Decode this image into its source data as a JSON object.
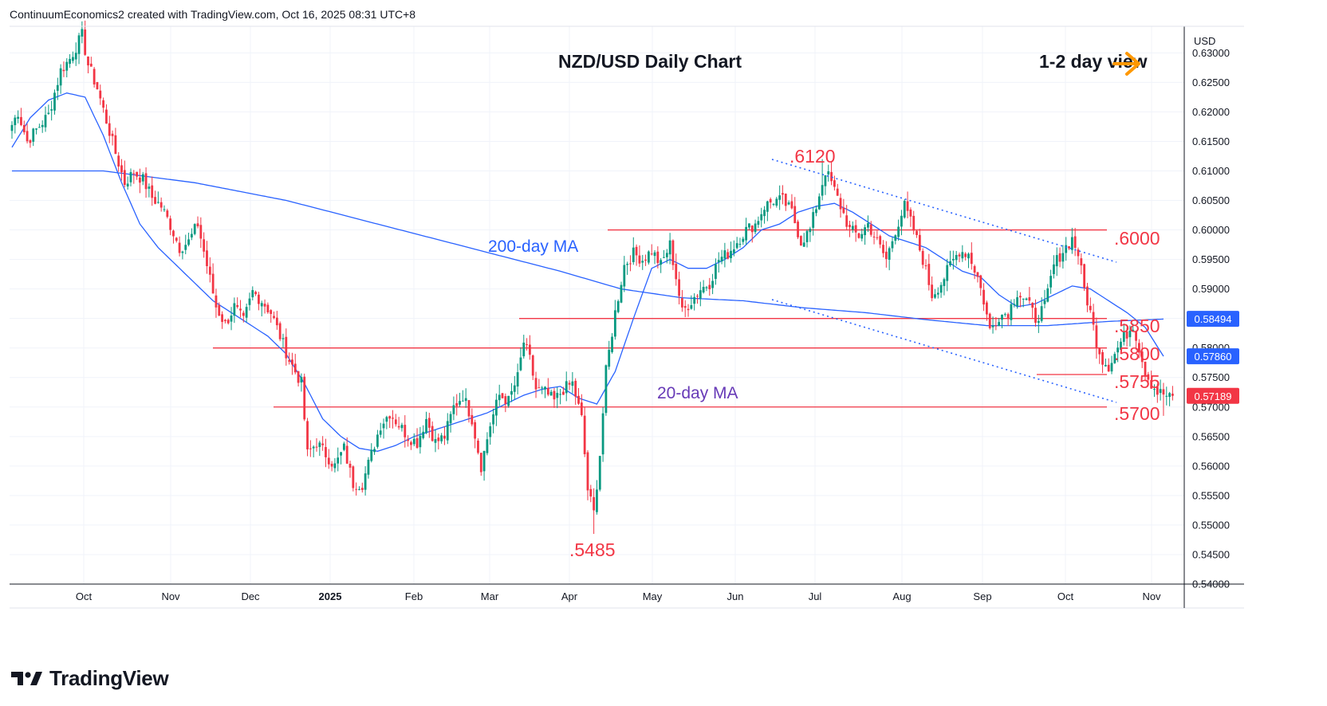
{
  "header": {
    "credit": "ContinuumEconomics2 created with TradingView.com, Oct 16, 2025 08:31 UTC+8"
  },
  "chart_data": {
    "type": "candlestick",
    "title": "NZD/USD Daily Chart",
    "view_note": "1-2 day view",
    "currency": "USD",
    "ylim": [
      0.54,
      0.6345
    ],
    "y_ticks": [
      "0.63000",
      "0.62500",
      "0.62000",
      "0.61500",
      "0.61000",
      "0.60500",
      "0.60000",
      "0.59500",
      "0.59000",
      "0.58500",
      "0.58000",
      "0.57500",
      "0.57000",
      "0.56500",
      "0.56000",
      "0.55500",
      "0.55000",
      "0.54500",
      "0.54000"
    ],
    "x_ticks": [
      "Oct",
      "Nov",
      "Dec",
      "2025",
      "Feb",
      "Mar",
      "Apr",
      "May",
      "Jun",
      "Jul",
      "Aug",
      "Sep",
      "Oct",
      "Nov"
    ],
    "x_tick_bold": "2025",
    "price_tags": [
      {
        "label": "0.58494",
        "value": 0.58494,
        "color": "#2962ff"
      },
      {
        "label": "0.57860",
        "value": 0.5786,
        "color": "#2962ff"
      },
      {
        "label": "0.57189",
        "value": 0.57189,
        "color": "#f23645"
      }
    ],
    "levels": [
      {
        "label": ".6000",
        "value": 0.6
      },
      {
        "label": ".5850",
        "value": 0.585
      },
      {
        "label": ".5800",
        "value": 0.58
      },
      {
        "label": ".5755",
        "value": 0.5755
      },
      {
        "label": ".5700",
        "value": 0.57
      }
    ],
    "peak_annotations": [
      {
        "label": ".6120",
        "value": 0.612
      },
      {
        "label": ".5485",
        "value": 0.5485
      }
    ],
    "ma_labels": {
      "ma200": "200-day MA",
      "ma20": "20-day MA"
    },
    "colors": {
      "up": "#089981",
      "down": "#f23645",
      "ma": "#2962ff",
      "level": "#f23645",
      "ma20_label": "#673ab7",
      "ma200_label": "#2962ff",
      "arrow": "#ff9800",
      "trend": "#2962ff"
    },
    "ohlc_anchors": [
      [
        0,
        0.6178
      ],
      [
        2,
        0.62
      ],
      [
        5,
        0.615
      ],
      [
        8,
        0.617
      ],
      [
        12,
        0.6195
      ],
      [
        16,
        0.627
      ],
      [
        19,
        0.629
      ],
      [
        21,
        0.631
      ],
      [
        23,
        0.633
      ],
      [
        25,
        0.628
      ],
      [
        28,
        0.624
      ],
      [
        31,
        0.6185
      ],
      [
        34,
        0.613
      ],
      [
        37,
        0.608
      ],
      [
        40,
        0.6098
      ],
      [
        43,
        0.6085
      ],
      [
        46,
        0.6055
      ],
      [
        49,
        0.604
      ],
      [
        52,
        0.6008
      ],
      [
        55,
        0.597
      ],
      [
        58,
        0.598
      ],
      [
        61,
        0.601
      ],
      [
        64,
        0.594
      ],
      [
        67,
        0.587
      ],
      [
        70,
        0.584
      ],
      [
        73,
        0.587
      ],
      [
        76,
        0.5845
      ],
      [
        79,
        0.5895
      ],
      [
        82,
        0.588
      ],
      [
        85,
        0.586
      ],
      [
        88,
        0.582
      ],
      [
        91,
        0.578
      ],
      [
        93,
        0.576
      ],
      [
        95,
        0.574
      ],
      [
        97,
        0.562
      ],
      [
        100,
        0.564
      ],
      [
        103,
        0.562
      ],
      [
        106,
        0.56
      ],
      [
        109,
        0.563
      ],
      [
        112,
        0.557
      ],
      [
        115,
        0.557
      ],
      [
        118,
        0.562
      ],
      [
        121,
        0.567
      ],
      [
        124,
        0.569
      ],
      [
        127,
        0.567
      ],
      [
        130,
        0.565
      ],
      [
        133,
        0.564
      ],
      [
        136,
        0.568
      ],
      [
        139,
        0.564
      ],
      [
        142,
        0.565
      ],
      [
        145,
        0.57
      ],
      [
        148,
        0.572
      ],
      [
        151,
        0.568
      ],
      [
        154,
        0.56
      ],
      [
        157,
        0.567
      ],
      [
        160,
        0.572
      ],
      [
        163,
        0.571
      ],
      [
        166,
        0.575
      ],
      [
        168,
        0.581
      ],
      [
        170,
        0.578
      ],
      [
        172,
        0.573
      ],
      [
        175,
        0.5725
      ],
      [
        178,
        0.571
      ],
      [
        181,
        0.573
      ],
      [
        184,
        0.574
      ],
      [
        187,
        0.568
      ],
      [
        189,
        0.556
      ],
      [
        191,
        0.552
      ],
      [
        193,
        0.562
      ],
      [
        195,
        0.576
      ],
      [
        198,
        0.586
      ],
      [
        201,
        0.594
      ],
      [
        204,
        0.596
      ],
      [
        207,
        0.595
      ],
      [
        210,
        0.5965
      ],
      [
        213,
        0.594
      ],
      [
        216,
        0.5975
      ],
      [
        218,
        0.592
      ],
      [
        220,
        0.586
      ],
      [
        223,
        0.588
      ],
      [
        226,
        0.59
      ],
      [
        229,
        0.591
      ],
      [
        232,
        0.595
      ],
      [
        235,
        0.596
      ],
      [
        238,
        0.598
      ],
      [
        241,
        0.6
      ],
      [
        244,
        0.601
      ],
      [
        247,
        0.604
      ],
      [
        250,
        0.605
      ],
      [
        253,
        0.605
      ],
      [
        256,
        0.603
      ],
      [
        259,
        0.598
      ],
      [
        262,
        0.6
      ],
      [
        265,
        0.606
      ],
      [
        267,
        0.61
      ],
      [
        269,
        0.608
      ],
      [
        272,
        0.604
      ],
      [
        275,
        0.6
      ],
      [
        278,
        0.599
      ],
      [
        281,
        0.601
      ],
      [
        284,
        0.598
      ],
      [
        287,
        0.595
      ],
      [
        290,
        0.6
      ],
      [
        293,
        0.604
      ],
      [
        296,
        0.6
      ],
      [
        299,
        0.595
      ],
      [
        302,
        0.589
      ],
      [
        305,
        0.591
      ],
      [
        308,
        0.594
      ],
      [
        311,
        0.5965
      ],
      [
        314,
        0.596
      ],
      [
        317,
        0.592
      ],
      [
        319,
        0.588
      ],
      [
        321,
        0.583
      ],
      [
        324,
        0.5855
      ],
      [
        327,
        0.586
      ],
      [
        330,
        0.5895
      ],
      [
        333,
        0.588
      ],
      [
        336,
        0.585
      ],
      [
        339,
        0.587
      ],
      [
        342,
        0.594
      ],
      [
        345,
        0.5965
      ],
      [
        348,
        0.5985
      ],
      [
        350,
        0.596
      ],
      [
        352,
        0.59
      ],
      [
        354,
        0.586
      ],
      [
        356,
        0.581
      ],
      [
        358,
        0.578
      ],
      [
        360,
        0.577
      ],
      [
        362,
        0.579
      ],
      [
        364,
        0.581
      ],
      [
        366,
        0.5825
      ],
      [
        368,
        0.584
      ],
      [
        370,
        0.58
      ],
      [
        372,
        0.576
      ],
      [
        374,
        0.574
      ],
      [
        376,
        0.5725
      ],
      [
        378,
        0.5722
      ],
      [
        380,
        0.5715
      ],
      [
        381,
        0.5719
      ]
    ],
    "ma20_anchors": [
      [
        0,
        0.614
      ],
      [
        6,
        0.619
      ],
      [
        12,
        0.622
      ],
      [
        18,
        0.6232
      ],
      [
        24,
        0.6225
      ],
      [
        30,
        0.616
      ],
      [
        36,
        0.608
      ],
      [
        42,
        0.601
      ],
      [
        48,
        0.597
      ],
      [
        54,
        0.594
      ],
      [
        60,
        0.591
      ],
      [
        66,
        0.588
      ],
      [
        72,
        0.586
      ],
      [
        78,
        0.584
      ],
      [
        84,
        0.582
      ],
      [
        90,
        0.579
      ],
      [
        96,
        0.574
      ],
      [
        102,
        0.568
      ],
      [
        108,
        0.565
      ],
      [
        114,
        0.563
      ],
      [
        120,
        0.5625
      ],
      [
        126,
        0.5635
      ],
      [
        132,
        0.565
      ],
      [
        138,
        0.566
      ],
      [
        144,
        0.567
      ],
      [
        150,
        0.568
      ],
      [
        156,
        0.569
      ],
      [
        162,
        0.5705
      ],
      [
        168,
        0.572
      ],
      [
        174,
        0.573
      ],
      [
        180,
        0.5735
      ],
      [
        186,
        0.5715
      ],
      [
        192,
        0.5705
      ],
      [
        198,
        0.576
      ],
      [
        204,
        0.585
      ],
      [
        210,
        0.5935
      ],
      [
        216,
        0.595
      ],
      [
        222,
        0.5935
      ],
      [
        228,
        0.5935
      ],
      [
        234,
        0.595
      ],
      [
        240,
        0.597
      ],
      [
        246,
        0.6
      ],
      [
        252,
        0.601
      ],
      [
        258,
        0.603
      ],
      [
        264,
        0.604
      ],
      [
        270,
        0.6045
      ],
      [
        276,
        0.603
      ],
      [
        282,
        0.601
      ],
      [
        288,
        0.599
      ],
      [
        294,
        0.598
      ],
      [
        300,
        0.597
      ],
      [
        306,
        0.595
      ],
      [
        312,
        0.593
      ],
      [
        318,
        0.592
      ],
      [
        324,
        0.589
      ],
      [
        330,
        0.587
      ],
      [
        336,
        0.5875
      ],
      [
        342,
        0.589
      ],
      [
        348,
        0.5905
      ],
      [
        354,
        0.59
      ],
      [
        360,
        0.588
      ],
      [
        366,
        0.586
      ],
      [
        372,
        0.5835
      ],
      [
        378,
        0.5786
      ]
    ],
    "ma200_anchors": [
      [
        0,
        0.61
      ],
      [
        30,
        0.61
      ],
      [
        60,
        0.608
      ],
      [
        90,
        0.605
      ],
      [
        120,
        0.601
      ],
      [
        150,
        0.597
      ],
      [
        180,
        0.593
      ],
      [
        200,
        0.59
      ],
      [
        220,
        0.5885
      ],
      [
        240,
        0.588
      ],
      [
        260,
        0.5868
      ],
      [
        280,
        0.586
      ],
      [
        300,
        0.5848
      ],
      [
        320,
        0.5838
      ],
      [
        340,
        0.5838
      ],
      [
        360,
        0.5845
      ],
      [
        378,
        0.5849
      ]
    ]
  }
}
